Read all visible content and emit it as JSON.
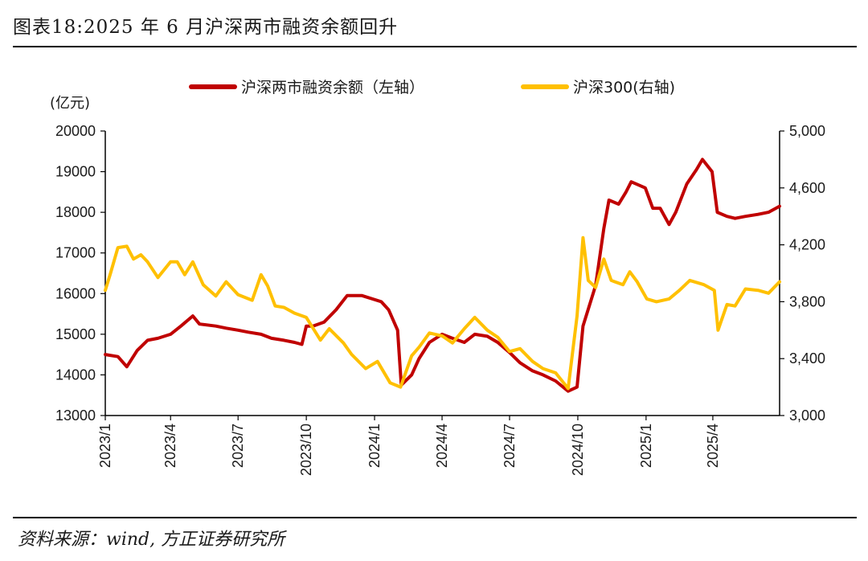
{
  "title": "图表18:2025 年 6 月沪深两市融资余额回升",
  "source": "资料来源：wind, 方正证券研究所",
  "chart_data": {
    "type": "line",
    "left_unit": "(亿元)",
    "left_axis": {
      "min": 13000,
      "max": 20000,
      "ticks": [
        "13000",
        "14000",
        "15000",
        "16000",
        "17000",
        "18000",
        "19000",
        "20000"
      ]
    },
    "right_axis": {
      "min": 3000,
      "max": 5000,
      "ticks": [
        "3,000",
        "3,400",
        "3,800",
        "4,200",
        "4,600",
        "5,000"
      ]
    },
    "x_ticks": [
      "2023/1",
      "2023/4",
      "2023/7",
      "2023/10",
      "2024/1",
      "2024/4",
      "2024/7",
      "2024/10",
      "2025/1",
      "2025/4"
    ],
    "x_range": [
      "2023-01-03",
      "2025-06-30"
    ],
    "series": [
      {
        "name": "沪深两市融资余额（左轴）",
        "axis": "left",
        "color": "#c00000",
        "points": [
          [
            "2023-01-03",
            14500
          ],
          [
            "2023-01-20",
            14450
          ],
          [
            "2023-02-01",
            14200
          ],
          [
            "2023-02-15",
            14600
          ],
          [
            "2023-03-01",
            14850
          ],
          [
            "2023-03-15",
            14900
          ],
          [
            "2023-04-01",
            15000
          ],
          [
            "2023-04-15",
            15200
          ],
          [
            "2023-05-01",
            15450
          ],
          [
            "2023-05-10",
            15250
          ],
          [
            "2023-06-01",
            15200
          ],
          [
            "2023-06-15",
            15150
          ],
          [
            "2023-07-01",
            15100
          ],
          [
            "2023-07-15",
            15050
          ],
          [
            "2023-08-01",
            15000
          ],
          [
            "2023-08-15",
            14900
          ],
          [
            "2023-09-01",
            14850
          ],
          [
            "2023-09-15",
            14800
          ],
          [
            "2023-09-25",
            14750
          ],
          [
            "2023-10-01",
            15200
          ],
          [
            "2023-10-10",
            15200
          ],
          [
            "2023-10-25",
            15300
          ],
          [
            "2023-11-10",
            15600
          ],
          [
            "2023-11-25",
            15950
          ],
          [
            "2023-12-15",
            15950
          ],
          [
            "2024-01-10",
            15800
          ],
          [
            "2024-01-20",
            15600
          ],
          [
            "2024-02-01",
            15100
          ],
          [
            "2024-02-06",
            13750
          ],
          [
            "2024-02-20",
            14000
          ],
          [
            "2024-03-01",
            14400
          ],
          [
            "2024-03-15",
            14800
          ],
          [
            "2024-04-01",
            15000
          ],
          [
            "2024-04-15",
            14900
          ],
          [
            "2024-05-01",
            14800
          ],
          [
            "2024-05-15",
            15000
          ],
          [
            "2024-06-01",
            14950
          ],
          [
            "2024-06-15",
            14800
          ],
          [
            "2024-07-01",
            14550
          ],
          [
            "2024-07-15",
            14300
          ],
          [
            "2024-08-01",
            14100
          ],
          [
            "2024-08-15",
            14000
          ],
          [
            "2024-09-01",
            13850
          ],
          [
            "2024-09-18",
            13600
          ],
          [
            "2024-09-30",
            13700
          ],
          [
            "2024-10-08",
            15200
          ],
          [
            "2024-10-25",
            16200
          ],
          [
            "2024-11-05",
            17600
          ],
          [
            "2024-11-12",
            18300
          ],
          [
            "2024-11-25",
            18200
          ],
          [
            "2024-12-05",
            18500
          ],
          [
            "2024-12-12",
            18750
          ],
          [
            "2024-12-31",
            18600
          ],
          [
            "2025-01-10",
            18100
          ],
          [
            "2025-01-20",
            18100
          ],
          [
            "2025-02-01",
            17700
          ],
          [
            "2025-02-10",
            18000
          ],
          [
            "2025-02-25",
            18700
          ],
          [
            "2025-03-10",
            19050
          ],
          [
            "2025-03-18",
            19300
          ],
          [
            "2025-03-31",
            19000
          ],
          [
            "2025-04-07",
            18000
          ],
          [
            "2025-04-20",
            17900
          ],
          [
            "2025-05-01",
            17850
          ],
          [
            "2025-05-15",
            17900
          ],
          [
            "2025-06-01",
            17950
          ],
          [
            "2025-06-15",
            18000
          ],
          [
            "2025-06-30",
            18150
          ]
        ]
      },
      {
        "name": "沪深300(右轴)",
        "axis": "right",
        "color": "#ffc000",
        "points": [
          [
            "2023-01-03",
            3880
          ],
          [
            "2023-01-10",
            4000
          ],
          [
            "2023-01-20",
            4180
          ],
          [
            "2023-02-01",
            4190
          ],
          [
            "2023-02-10",
            4100
          ],
          [
            "2023-02-20",
            4130
          ],
          [
            "2023-03-01",
            4080
          ],
          [
            "2023-03-15",
            3970
          ],
          [
            "2023-04-01",
            4080
          ],
          [
            "2023-04-10",
            4080
          ],
          [
            "2023-04-20",
            3990
          ],
          [
            "2023-05-01",
            4080
          ],
          [
            "2023-05-15",
            3920
          ],
          [
            "2023-06-01",
            3840
          ],
          [
            "2023-06-15",
            3940
          ],
          [
            "2023-07-01",
            3850
          ],
          [
            "2023-07-20",
            3810
          ],
          [
            "2023-08-01",
            3990
          ],
          [
            "2023-08-10",
            3910
          ],
          [
            "2023-08-20",
            3770
          ],
          [
            "2023-09-01",
            3760
          ],
          [
            "2023-09-15",
            3720
          ],
          [
            "2023-10-01",
            3690
          ],
          [
            "2023-10-20",
            3530
          ],
          [
            "2023-11-01",
            3610
          ],
          [
            "2023-11-20",
            3510
          ],
          [
            "2023-12-01",
            3430
          ],
          [
            "2023-12-20",
            3330
          ],
          [
            "2024-01-05",
            3380
          ],
          [
            "2024-01-22",
            3230
          ],
          [
            "2024-02-05",
            3200
          ],
          [
            "2024-02-20",
            3420
          ],
          [
            "2024-03-01",
            3480
          ],
          [
            "2024-03-15",
            3580
          ],
          [
            "2024-04-01",
            3560
          ],
          [
            "2024-04-15",
            3510
          ],
          [
            "2024-05-01",
            3610
          ],
          [
            "2024-05-15",
            3690
          ],
          [
            "2024-06-01",
            3600
          ],
          [
            "2024-06-15",
            3550
          ],
          [
            "2024-07-01",
            3450
          ],
          [
            "2024-07-15",
            3470
          ],
          [
            "2024-08-01",
            3380
          ],
          [
            "2024-08-15",
            3330
          ],
          [
            "2024-09-01",
            3300
          ],
          [
            "2024-09-18",
            3190
          ],
          [
            "2024-09-30",
            3700
          ],
          [
            "2024-10-08",
            4250
          ],
          [
            "2024-10-15",
            3950
          ],
          [
            "2024-10-25",
            3900
          ],
          [
            "2024-11-05",
            4100
          ],
          [
            "2024-11-15",
            3950
          ],
          [
            "2024-12-01",
            3920
          ],
          [
            "2024-12-10",
            4010
          ],
          [
            "2024-12-20",
            3940
          ],
          [
            "2025-01-02",
            3820
          ],
          [
            "2025-01-15",
            3800
          ],
          [
            "2025-02-01",
            3820
          ],
          [
            "2025-02-15",
            3880
          ],
          [
            "2025-03-01",
            3950
          ],
          [
            "2025-03-20",
            3920
          ],
          [
            "2025-04-03",
            3880
          ],
          [
            "2025-04-08",
            3600
          ],
          [
            "2025-04-20",
            3780
          ],
          [
            "2025-05-01",
            3770
          ],
          [
            "2025-05-15",
            3890
          ],
          [
            "2025-06-01",
            3880
          ],
          [
            "2025-06-15",
            3860
          ],
          [
            "2025-06-30",
            3940
          ]
        ]
      }
    ]
  }
}
